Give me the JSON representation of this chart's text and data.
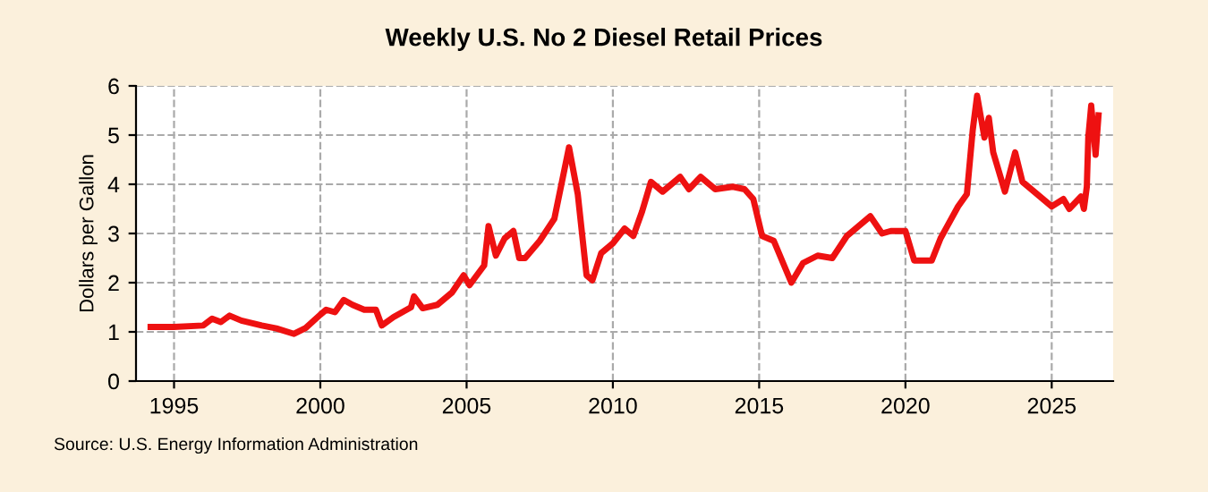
{
  "chart_data": {
    "type": "line",
    "title": "Weekly U.S. No 2 Diesel Retail Prices",
    "ylabel": "Dollars per Gallon",
    "annotations": [
      "Source: U.S. Energy Information Administration"
    ],
    "x": [
      1994.2,
      1995,
      1996,
      1996.3,
      1996.6,
      1996.9,
      1997.3,
      1998,
      1998.5,
      1999.1,
      1999.5,
      2000,
      2000.2,
      2000.5,
      2000.8,
      2001.1,
      2001.5,
      2001.9,
      2002.1,
      2002.5,
      2003.1,
      2003.2,
      2003.5,
      2004,
      2004.5,
      2004.9,
      2005.1,
      2005.6,
      2005.75,
      2006.0,
      2006.3,
      2006.6,
      2006.8,
      2007.0,
      2007.5,
      2008.0,
      2008.5,
      2008.8,
      2009.1,
      2009.3,
      2009.6,
      2010,
      2010.4,
      2010.7,
      2011,
      2011.3,
      2011.7,
      2012.3,
      2012.6,
      2013,
      2013.5,
      2014.1,
      2014.5,
      2014.8,
      2015.1,
      2015.5,
      2016.1,
      2016.5,
      2017,
      2017.5,
      2018,
      2018.8,
      2019.2,
      2019.5,
      2020.0,
      2020.3,
      2020.9,
      2021.2,
      2021.8,
      2022.1,
      2022.3,
      2022.45,
      2022.7,
      2022.85,
      2023.0,
      2023.4,
      2023.75,
      2024.0,
      2024.5,
      2025.0,
      2025.4,
      2025.6,
      2026.0,
      2026.1,
      2026.2,
      2026.25,
      2026.35,
      2026.5,
      2026.6
    ],
    "series": [
      {
        "color": "#ee1111",
        "values": [
          1.1,
          1.1,
          1.13,
          1.27,
          1.2,
          1.33,
          1.23,
          1.13,
          1.07,
          0.96,
          1.08,
          1.35,
          1.45,
          1.4,
          1.65,
          1.55,
          1.45,
          1.45,
          1.13,
          1.3,
          1.5,
          1.72,
          1.48,
          1.55,
          1.8,
          2.15,
          1.95,
          2.35,
          3.15,
          2.55,
          2.9,
          3.05,
          2.5,
          2.5,
          2.85,
          3.3,
          4.75,
          3.8,
          2.15,
          2.05,
          2.6,
          2.8,
          3.1,
          2.95,
          3.45,
          4.05,
          3.85,
          4.15,
          3.9,
          4.15,
          3.9,
          3.95,
          3.9,
          3.7,
          2.95,
          2.85,
          2.0,
          2.4,
          2.55,
          2.5,
          2.95,
          3.35,
          3.0,
          3.05,
          3.05,
          2.45,
          2.45,
          2.9,
          3.55,
          3.8,
          5.1,
          5.8,
          4.95,
          5.35,
          4.65,
          3.85,
          4.65,
          4.05,
          3.8,
          3.55,
          3.7,
          3.5,
          3.75,
          3.5,
          3.95,
          4.95,
          5.6,
          4.6,
          5.4
        ]
      }
    ],
    "xlim": [
      1993.7,
      2027.1
    ],
    "xticks": [
      1995,
      2000,
      2005,
      2010,
      2015,
      2020,
      2025
    ],
    "ylim": [
      0,
      6
    ],
    "yticks": [
      0,
      1,
      2,
      3,
      4,
      5,
      6
    ],
    "grid": true,
    "line_style": "solid",
    "legend": false
  }
}
